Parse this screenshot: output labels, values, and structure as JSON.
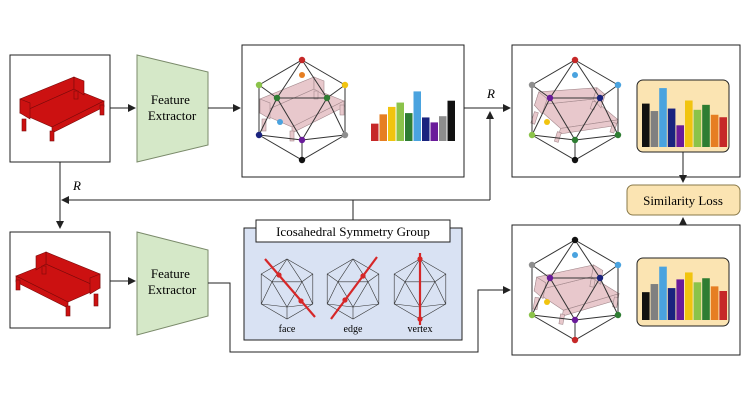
{
  "blocks": {
    "feature_extractor_top": "Feature\nExtractor",
    "feature_extractor_bottom": "Feature\nExtractor",
    "similarity_loss": "Similarity Loss"
  },
  "labels": {
    "rotation_left": "R",
    "rotation_top": "R"
  },
  "icosahedral": {
    "title": "Icosahedral Symmetry Group",
    "items": [
      "face",
      "edge",
      "vertex"
    ]
  },
  "colors": {
    "extractor_fill": "#d5e8c8",
    "loss_fill": "#fbe4b2",
    "loss_border": "#8a7a4a",
    "panel_fill": "#d9e2f3",
    "couch_red": "#cc1111",
    "couch_pink": "#e8c8cc",
    "axis_red": "#d62728"
  },
  "histograms": {
    "top_middle": [
      {
        "value": 0.28,
        "color": "#c62828"
      },
      {
        "value": 0.43,
        "color": "#e67e22"
      },
      {
        "value": 0.55,
        "color": "#f1c40f"
      },
      {
        "value": 0.62,
        "color": "#8bc34a"
      },
      {
        "value": 0.45,
        "color": "#2e7d32"
      },
      {
        "value": 0.8,
        "color": "#4aa3df"
      },
      {
        "value": 0.38,
        "color": "#1a237e"
      },
      {
        "value": 0.3,
        "color": "#6a1b9a"
      },
      {
        "value": 0.4,
        "color": "#8e8e8e"
      },
      {
        "value": 0.65,
        "color": "#111111"
      }
    ],
    "top_right": [
      {
        "value": 0.7,
        "color": "#111111"
      },
      {
        "value": 0.58,
        "color": "#808080"
      },
      {
        "value": 0.95,
        "color": "#4aa3df"
      },
      {
        "value": 0.62,
        "color": "#1a237e"
      },
      {
        "value": 0.35,
        "color": "#6a1b9a"
      },
      {
        "value": 0.75,
        "color": "#f1c40f"
      },
      {
        "value": 0.6,
        "color": "#8bc34a"
      },
      {
        "value": 0.68,
        "color": "#2e7d32"
      },
      {
        "value": 0.52,
        "color": "#e67e22"
      },
      {
        "value": 0.48,
        "color": "#c62828"
      }
    ],
    "bottom_right": [
      {
        "value": 0.48,
        "color": "#111111"
      },
      {
        "value": 0.62,
        "color": "#808080"
      },
      {
        "value": 0.92,
        "color": "#4aa3df"
      },
      {
        "value": 0.55,
        "color": "#1a237e"
      },
      {
        "value": 0.7,
        "color": "#6a1b9a"
      },
      {
        "value": 0.82,
        "color": "#f1c40f"
      },
      {
        "value": 0.65,
        "color": "#8bc34a"
      },
      {
        "value": 0.72,
        "color": "#2e7d32"
      },
      {
        "value": 0.58,
        "color": "#e67e22"
      },
      {
        "value": 0.5,
        "color": "#c62828"
      }
    ]
  }
}
